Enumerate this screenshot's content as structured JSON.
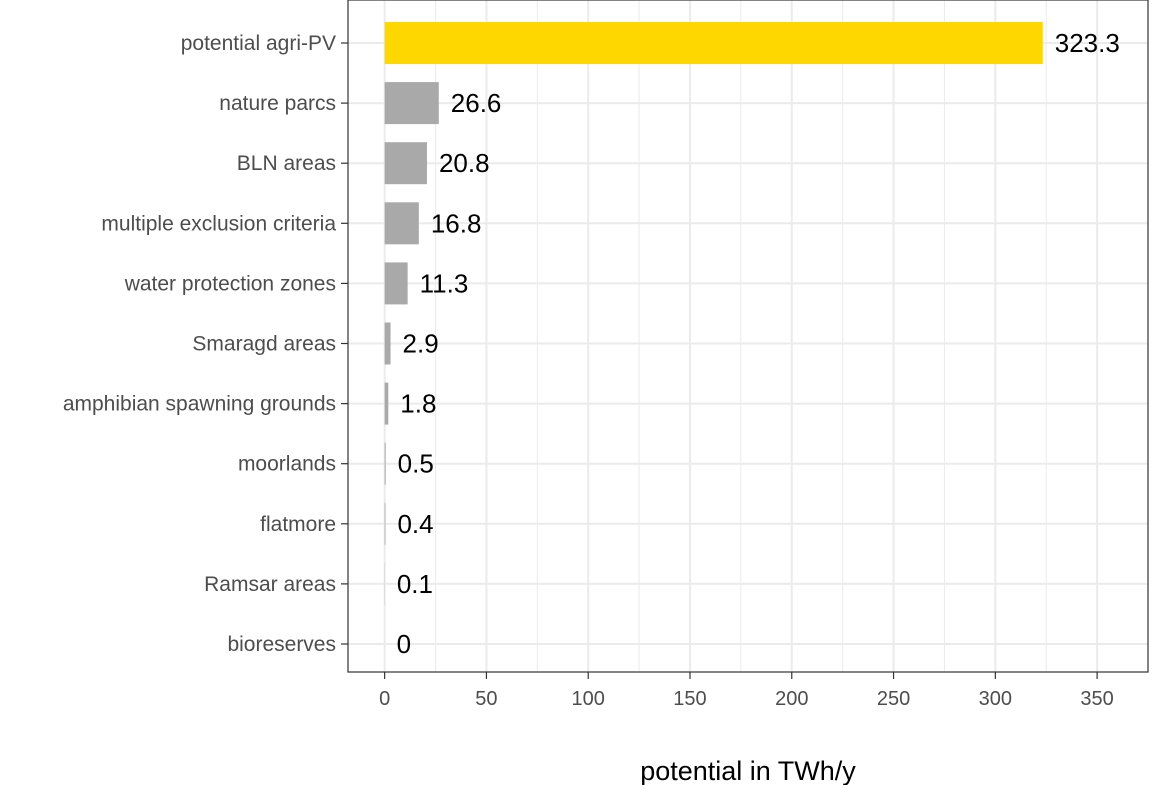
{
  "chart_data": {
    "type": "bar",
    "orientation": "horizontal",
    "categories": [
      "potential agri-PV",
      "nature parcs",
      "BLN areas",
      "multiple exclusion criteria",
      "water protection zones",
      "Smaragd areas",
      "amphibian spawning grounds",
      "moorlands",
      "flatmore",
      "Ramsar areas",
      "bioreserves"
    ],
    "values": [
      323.3,
      26.6,
      20.8,
      16.8,
      11.3,
      2.9,
      1.8,
      0.5,
      0.4,
      0.1,
      0
    ],
    "value_labels": [
      "323.3",
      "26.6",
      "20.8",
      "16.8",
      "11.3",
      "2.9",
      "1.8",
      "0.5",
      "0.4",
      "0.1",
      "0"
    ],
    "title": "",
    "xlabel": "potential in TWh/y",
    "ylabel": "",
    "xlim": [
      -18,
      375
    ],
    "xticks": [
      0,
      50,
      100,
      150,
      200,
      250,
      300,
      350
    ],
    "grid": true,
    "colors": {
      "highlight": "#FFD700",
      "default": "#A9A9A9",
      "grid": "#EBEBEB",
      "axis": "#333333"
    }
  }
}
